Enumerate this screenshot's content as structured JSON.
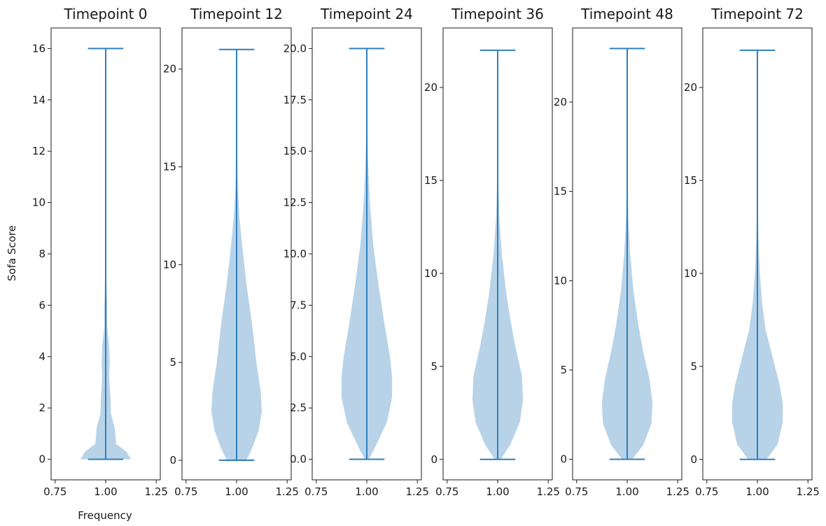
{
  "chart_data": {
    "type": "violin",
    "xlabel": "Frequency",
    "ylabel": "Sofa Score",
    "colors": {
      "body": "#b8d3e8",
      "line": "#2f7fbd",
      "frame": "#1a1a1a"
    },
    "panels": [
      {
        "title": "Timepoint 0",
        "position": 1.0,
        "xlim": [
          0.73,
          1.27
        ],
        "xticks": [
          {
            "v": 0.75,
            "label": "0.75"
          },
          {
            "v": 1.0,
            "label": "1.00"
          },
          {
            "v": 1.25,
            "label": "1.25"
          }
        ],
        "ylim": [
          -0.8,
          16.8
        ],
        "yticks": [
          {
            "v": 0,
            "label": "0"
          },
          {
            "v": 2,
            "label": "2"
          },
          {
            "v": 4,
            "label": "4"
          },
          {
            "v": 6,
            "label": "6"
          },
          {
            "v": 8,
            "label": "8"
          },
          {
            "v": 10,
            "label": "10"
          },
          {
            "v": 12,
            "label": "12"
          },
          {
            "v": 14,
            "label": "14"
          },
          {
            "v": 16,
            "label": "16"
          }
        ],
        "min": 0,
        "max": 16,
        "density": [
          [
            0,
            0.22
          ],
          [
            0.3,
            0.18
          ],
          [
            0.6,
            0.09
          ],
          [
            1.2,
            0.08
          ],
          [
            1.8,
            0.045
          ],
          [
            2.5,
            0.04
          ],
          [
            3.2,
            0.03
          ],
          [
            3.8,
            0.035
          ],
          [
            4.4,
            0.03
          ],
          [
            5.2,
            0.012
          ],
          [
            6.0,
            0.012
          ],
          [
            6.6,
            0.008
          ],
          [
            7.5,
            0.005
          ],
          [
            8.5,
            0.002
          ],
          [
            10,
            0.001
          ],
          [
            16,
            0.0
          ]
        ]
      },
      {
        "title": "Timepoint 12",
        "position": 1.0,
        "xlim": [
          0.73,
          1.27
        ],
        "xticks": [
          {
            "v": 0.75,
            "label": "0.75"
          },
          {
            "v": 1.0,
            "label": "1.00"
          },
          {
            "v": 1.25,
            "label": "1.25"
          }
        ],
        "ylim": [
          -1.0,
          22.1
        ],
        "yticks": [
          {
            "v": 0,
            "label": "0"
          },
          {
            "v": 5,
            "label": "5"
          },
          {
            "v": 10,
            "label": "10"
          },
          {
            "v": 15,
            "label": "15"
          },
          {
            "v": 20,
            "label": "20"
          }
        ],
        "min": 0,
        "max": 21,
        "density": [
          [
            0,
            0.09
          ],
          [
            0.6,
            0.14
          ],
          [
            1.5,
            0.2
          ],
          [
            2.5,
            0.23
          ],
          [
            3.5,
            0.22
          ],
          [
            5,
            0.18
          ],
          [
            7,
            0.14
          ],
          [
            9,
            0.09
          ],
          [
            11,
            0.05
          ],
          [
            12.5,
            0.025
          ],
          [
            14,
            0.01
          ],
          [
            16,
            0.004
          ],
          [
            18,
            0.001
          ],
          [
            21,
            0.0
          ]
        ]
      },
      {
        "title": "Timepoint 24",
        "position": 1.0,
        "xlim": [
          0.73,
          1.27
        ],
        "xticks": [
          {
            "v": 0.75,
            "label": "0.75"
          },
          {
            "v": 1.0,
            "label": "1.00"
          },
          {
            "v": 1.25,
            "label": "1.25"
          }
        ],
        "ylim": [
          -1.0,
          21.0
        ],
        "yticks": [
          {
            "v": 0,
            "label": "0.0"
          },
          {
            "v": 2.5,
            "label": "2.5"
          },
          {
            "v": 5,
            "label": "5.0"
          },
          {
            "v": 7.5,
            "label": "7.5"
          },
          {
            "v": 10,
            "label": "10.0"
          },
          {
            "v": 12.5,
            "label": "12.5"
          },
          {
            "v": 15,
            "label": "15.0"
          },
          {
            "v": 17.5,
            "label": "17.5"
          },
          {
            "v": 20,
            "label": "20.0"
          }
        ],
        "min": 0,
        "max": 20,
        "density": [
          [
            0,
            0.02
          ],
          [
            0.7,
            0.09
          ],
          [
            1.8,
            0.19
          ],
          [
            3,
            0.24
          ],
          [
            4,
            0.24
          ],
          [
            5,
            0.22
          ],
          [
            6.5,
            0.17
          ],
          [
            8.5,
            0.11
          ],
          [
            10.5,
            0.06
          ],
          [
            12.5,
            0.03
          ],
          [
            14.5,
            0.012
          ],
          [
            16.5,
            0.004
          ],
          [
            20,
            0.0
          ]
        ]
      },
      {
        "title": "Timepoint 36",
        "position": 1.0,
        "xlim": [
          0.73,
          1.27
        ],
        "xticks": [
          {
            "v": 0.75,
            "label": "0.75"
          },
          {
            "v": 1.0,
            "label": "1.00"
          },
          {
            "v": 1.25,
            "label": "1.25"
          }
        ],
        "ylim": [
          -1.1,
          23.2
        ],
        "yticks": [
          {
            "v": 0,
            "label": "0"
          },
          {
            "v": 5,
            "label": "5"
          },
          {
            "v": 10,
            "label": "10"
          },
          {
            "v": 15,
            "label": "15"
          },
          {
            "v": 20,
            "label": "20"
          }
        ],
        "min": 0,
        "max": 22,
        "density": [
          [
            0,
            0.03
          ],
          [
            0.8,
            0.12
          ],
          [
            2,
            0.21
          ],
          [
            3.2,
            0.24
          ],
          [
            4.5,
            0.23
          ],
          [
            6,
            0.17
          ],
          [
            7.5,
            0.12
          ],
          [
            9,
            0.08
          ],
          [
            11,
            0.04
          ],
          [
            13,
            0.015
          ],
          [
            15,
            0.006
          ],
          [
            17,
            0.002
          ],
          [
            22,
            0.0
          ]
        ]
      },
      {
        "title": "Timepoint 48",
        "position": 1.0,
        "xlim": [
          0.73,
          1.27
        ],
        "xticks": [
          {
            "v": 0.75,
            "label": "0.75"
          },
          {
            "v": 1.0,
            "label": "1.00"
          },
          {
            "v": 1.25,
            "label": "1.25"
          }
        ],
        "ylim": [
          -1.15,
          24.15
        ],
        "yticks": [
          {
            "v": 0,
            "label": "0"
          },
          {
            "v": 5,
            "label": "5"
          },
          {
            "v": 10,
            "label": "10"
          },
          {
            "v": 15,
            "label": "15"
          },
          {
            "v": 20,
            "label": "20"
          }
        ],
        "min": 0,
        "max": 23,
        "density": [
          [
            0,
            0.05
          ],
          [
            0.8,
            0.16
          ],
          [
            2,
            0.24
          ],
          [
            3.2,
            0.25
          ],
          [
            4.5,
            0.22
          ],
          [
            6,
            0.16
          ],
          [
            7.5,
            0.11
          ],
          [
            9.5,
            0.06
          ],
          [
            11.5,
            0.03
          ],
          [
            13.5,
            0.012
          ],
          [
            15.5,
            0.004
          ],
          [
            18,
            0.001
          ],
          [
            23,
            0.0
          ]
        ]
      },
      {
        "title": "Timepoint 72",
        "position": 1.0,
        "xlim": [
          0.73,
          1.27
        ],
        "xticks": [
          {
            "v": 0.75,
            "label": "0.75"
          },
          {
            "v": 1.0,
            "label": "1.00"
          },
          {
            "v": 1.25,
            "label": "1.25"
          }
        ],
        "ylim": [
          -1.1,
          23.2
        ],
        "yticks": [
          {
            "v": 0,
            "label": "0"
          },
          {
            "v": 5,
            "label": "5"
          },
          {
            "v": 10,
            "label": "10"
          },
          {
            "v": 15,
            "label": "15"
          },
          {
            "v": 20,
            "label": "20"
          }
        ],
        "min": 0,
        "max": 22,
        "density": [
          [
            0,
            0.09
          ],
          [
            0.8,
            0.2
          ],
          [
            2,
            0.25
          ],
          [
            3,
            0.25
          ],
          [
            4,
            0.22
          ],
          [
            5.5,
            0.15
          ],
          [
            7,
            0.08
          ],
          [
            8.5,
            0.045
          ],
          [
            10,
            0.025
          ],
          [
            12,
            0.01
          ],
          [
            14,
            0.004
          ],
          [
            16,
            0.001
          ],
          [
            22,
            0.0
          ]
        ]
      }
    ]
  }
}
